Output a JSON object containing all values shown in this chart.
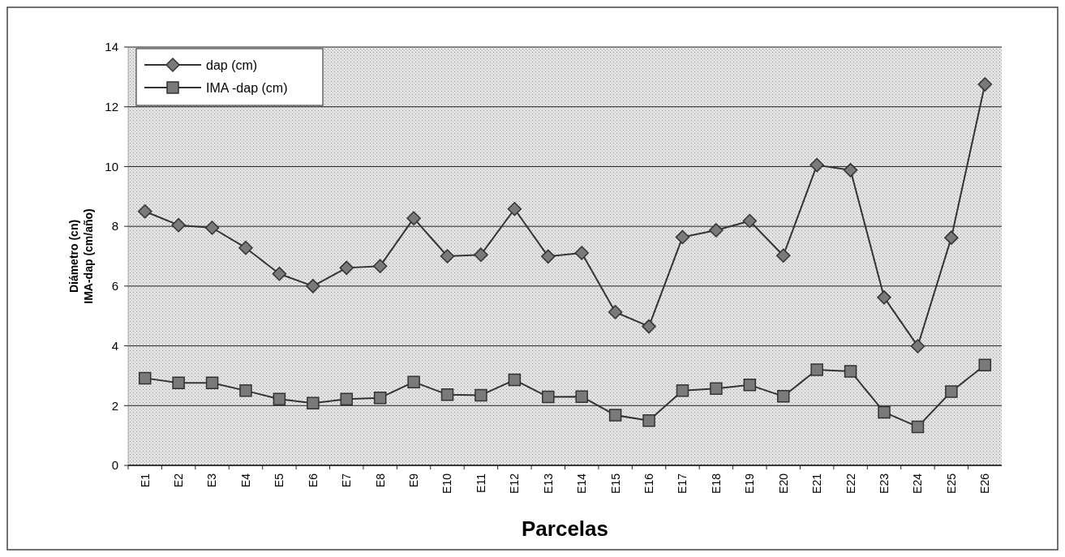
{
  "chart_data": {
    "type": "line",
    "xlabel": "Parcelas",
    "ylabel": "Diámetro (cn)\nIMA-dap (cm/año)",
    "categories": [
      "E1",
      "E2",
      "E3",
      "E4",
      "E5",
      "E6",
      "E7",
      "E8",
      "E9",
      "E10",
      "E11",
      "E12",
      "E13",
      "E14",
      "E15",
      "E16",
      "E17",
      "E18",
      "E19",
      "E20",
      "E21",
      "E22",
      "E23",
      "E24",
      "E25",
      "E26"
    ],
    "series": [
      {
        "name": "dap (cm)",
        "color": "#333333",
        "marker": "diamond",
        "values": [
          8.5,
          8.04,
          7.95,
          7.28,
          6.41,
          6.0,
          6.61,
          6.67,
          8.27,
          7.0,
          7.05,
          8.58,
          6.99,
          7.11,
          5.13,
          4.65,
          7.64,
          7.87,
          8.18,
          7.02,
          10.05,
          9.88,
          5.62,
          3.99,
          7.62,
          12.75
        ]
      },
      {
        "name": "IMA -dap (cm)",
        "color": "#333333",
        "marker": "square",
        "values": [
          2.92,
          2.76,
          2.76,
          2.5,
          2.22,
          2.08,
          2.22,
          2.26,
          2.79,
          2.37,
          2.35,
          2.86,
          2.29,
          2.3,
          1.68,
          1.5,
          2.5,
          2.57,
          2.69,
          2.31,
          3.2,
          3.15,
          1.78,
          1.29,
          2.47,
          3.36
        ]
      }
    ],
    "ylim": [
      0,
      14
    ],
    "yticks": [
      0,
      2,
      4,
      6,
      8,
      10,
      12,
      14
    ],
    "grid": "y",
    "legend": "top left",
    "line_style": "solid"
  }
}
